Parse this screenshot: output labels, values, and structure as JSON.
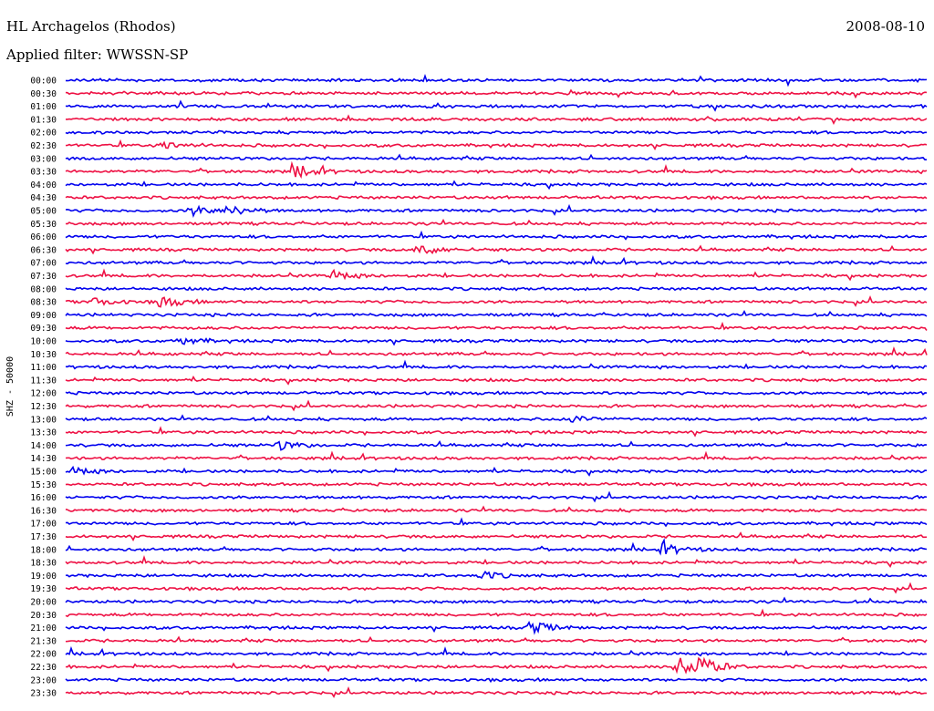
{
  "header": {
    "station": "HL Archagelos (Rhodos)",
    "date": "2008-08-10",
    "filter": "Applied filter: WWSSN-SP"
  },
  "chart_data": {
    "type": "line",
    "title": "HL Archagelos (Rhodos)",
    "subtitle": "Applied filter: WWSSN-SP",
    "ylabel": "SHZ - 50000",
    "colors": [
      "#0000ee",
      "#ee1144"
    ],
    "rows": [
      "00:00",
      "00:30",
      "01:00",
      "01:30",
      "02:00",
      "02:30",
      "03:00",
      "03:30",
      "04:00",
      "04:30",
      "05:00",
      "05:30",
      "06:00",
      "06:30",
      "07:00",
      "07:30",
      "08:00",
      "08:30",
      "09:00",
      "09:30",
      "10:00",
      "10:30",
      "11:00",
      "11:30",
      "12:00",
      "12:30",
      "13:00",
      "13:30",
      "14:00",
      "14:30",
      "15:00",
      "15:30",
      "16:00",
      "16:30",
      "17:00",
      "17:30",
      "18:00",
      "18:30",
      "19:00",
      "19:30",
      "20:00",
      "20:30",
      "21:00",
      "21:30",
      "22:00",
      "22:30",
      "23:00",
      "23:30"
    ],
    "events": [
      {
        "row": "02:30",
        "minute": 3.4,
        "amplitude": 4
      },
      {
        "row": "03:30",
        "minute": 8.0,
        "amplitude": 7
      },
      {
        "row": "05:00",
        "minute": 4.4,
        "amplitude": 5
      },
      {
        "row": "05:00",
        "minute": 5.6,
        "amplitude": 6
      },
      {
        "row": "06:30",
        "minute": 12.3,
        "amplitude": 6
      },
      {
        "row": "07:30",
        "minute": 9.3,
        "amplitude": 5
      },
      {
        "row": "08:30",
        "minute": 1.0,
        "amplitude": 4
      },
      {
        "row": "08:30",
        "minute": 3.3,
        "amplitude": 6
      },
      {
        "row": "10:00",
        "minute": 4.0,
        "amplitude": 4
      },
      {
        "row": "13:00",
        "minute": 17.5,
        "amplitude": 5
      },
      {
        "row": "14:00",
        "minute": 7.4,
        "amplitude": 5
      },
      {
        "row": "15:00",
        "minute": 0.3,
        "amplitude": 4
      },
      {
        "row": "18:00",
        "minute": 20.8,
        "amplitude": 6
      },
      {
        "row": "19:00",
        "minute": 14.5,
        "amplitude": 4
      },
      {
        "row": "21:00",
        "minute": 16.2,
        "amplitude": 7
      },
      {
        "row": "22:30",
        "minute": 21.3,
        "amplitude": 12
      },
      {
        "row": "22:30",
        "minute": 22.0,
        "amplitude": 10
      }
    ]
  }
}
